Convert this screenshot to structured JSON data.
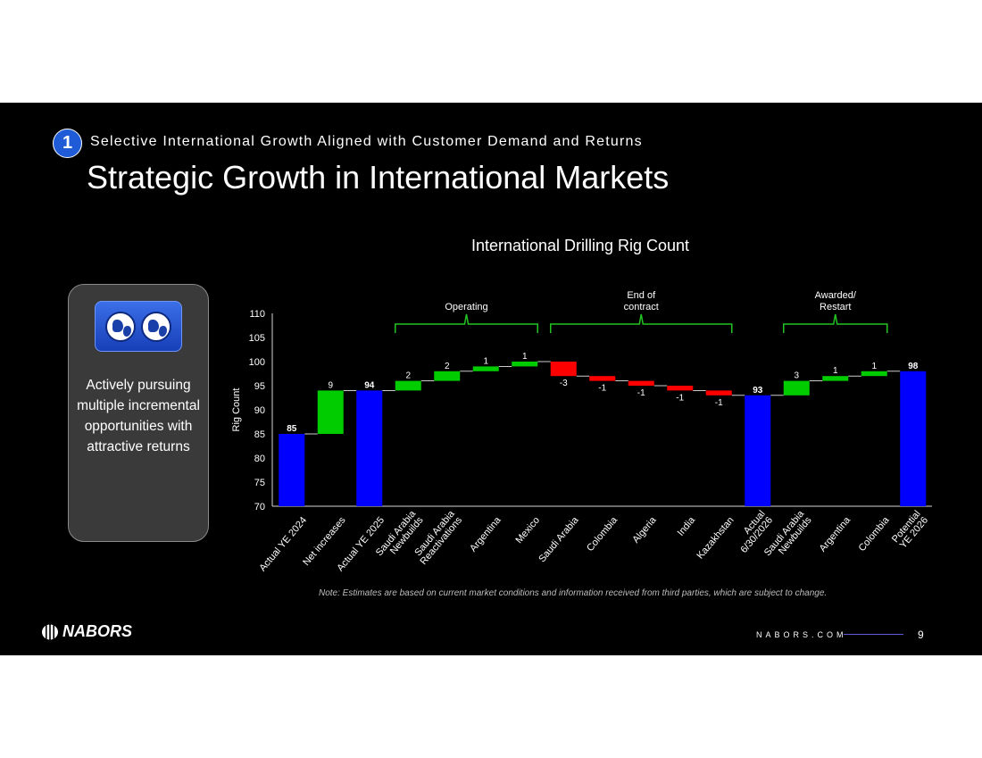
{
  "header": {
    "section_number": "1",
    "section_title": "Selective International Growth Aligned with Customer Demand and Returns",
    "title": "Strategic Growth in International Markets"
  },
  "sidebar_card": {
    "icon": "globe-icon",
    "text": "Actively pursuing multiple incremental opportunities with attractive returns"
  },
  "footer": {
    "note": "Note: Estimates are based on current market conditions and information received from third parties, which are subject to change.",
    "logo_text": "NABORS",
    "url": "NABORS.COM",
    "page_number": "9"
  },
  "colors": {
    "total": "#0000ff",
    "increase": "#00cc00",
    "decrease": "#ff0000",
    "bracket": "#22c322"
  },
  "chart_data": {
    "type": "bar",
    "subtype": "waterfall",
    "title": "International Drilling Rig Count",
    "xlabel": "",
    "ylabel": "Rig Count",
    "ylim": [
      70,
      110
    ],
    "yticks": [
      70,
      75,
      80,
      85,
      90,
      95,
      100,
      105,
      110
    ],
    "grid": false,
    "categories": [
      "Actual YE 2024",
      "Net increases",
      "Actual YE 2025",
      "Saudi Arabia Newbuilds",
      "Saudi Arabia Reactivations",
      "Argentina",
      "Mexico",
      "Saudi Arabia",
      "Colombia",
      "Algeria",
      "India",
      "Kazakhstan",
      "Actual 6/30/2026",
      "Saudi Arabia Newbuilds",
      "Argentina",
      "Colombia",
      "Potential YE 2026"
    ],
    "category_lines": [
      [
        "Actual YE 2024"
      ],
      [
        "Net increases"
      ],
      [
        "Actual YE 2025"
      ],
      [
        "Saudi Arabia",
        "Newbuilds"
      ],
      [
        "Saudi Arabia",
        "Reactivations"
      ],
      [
        "Argentina"
      ],
      [
        "Mexico"
      ],
      [
        "Saudi Arabia"
      ],
      [
        "Colombia"
      ],
      [
        "Algeria"
      ],
      [
        "India"
      ],
      [
        "Kazakhstan"
      ],
      [
        "Actual",
        "6/30/2026"
      ],
      [
        "Saudi Arabia",
        "Newbuilds"
      ],
      [
        "Argentina"
      ],
      [
        "Colombia"
      ],
      [
        "Potential",
        "YE 2026"
      ]
    ],
    "kinds": [
      "total",
      "increase",
      "total",
      "increase",
      "increase",
      "increase",
      "increase",
      "decrease",
      "decrease",
      "decrease",
      "decrease",
      "decrease",
      "total",
      "increase",
      "increase",
      "increase",
      "total"
    ],
    "values": [
      85,
      9,
      94,
      2,
      2,
      1,
      1,
      -3,
      -1,
      -1,
      -1,
      -1,
      93,
      3,
      1,
      1,
      98
    ],
    "value_labels": [
      "85",
      "9",
      "94",
      "2",
      "2",
      "1",
      "1",
      "-3",
      "-1",
      "-1",
      "-1",
      "-1",
      "93",
      "3",
      "1",
      "1",
      "98"
    ],
    "groups": [
      {
        "label_lines": [
          "Operating"
        ],
        "from": 3,
        "to": 6
      },
      {
        "label_lines": [
          "End of",
          "contract"
        ],
        "from": 7,
        "to": 11
      },
      {
        "label_lines": [
          "Awarded/",
          "Restart"
        ],
        "from": 13,
        "to": 15
      }
    ]
  }
}
